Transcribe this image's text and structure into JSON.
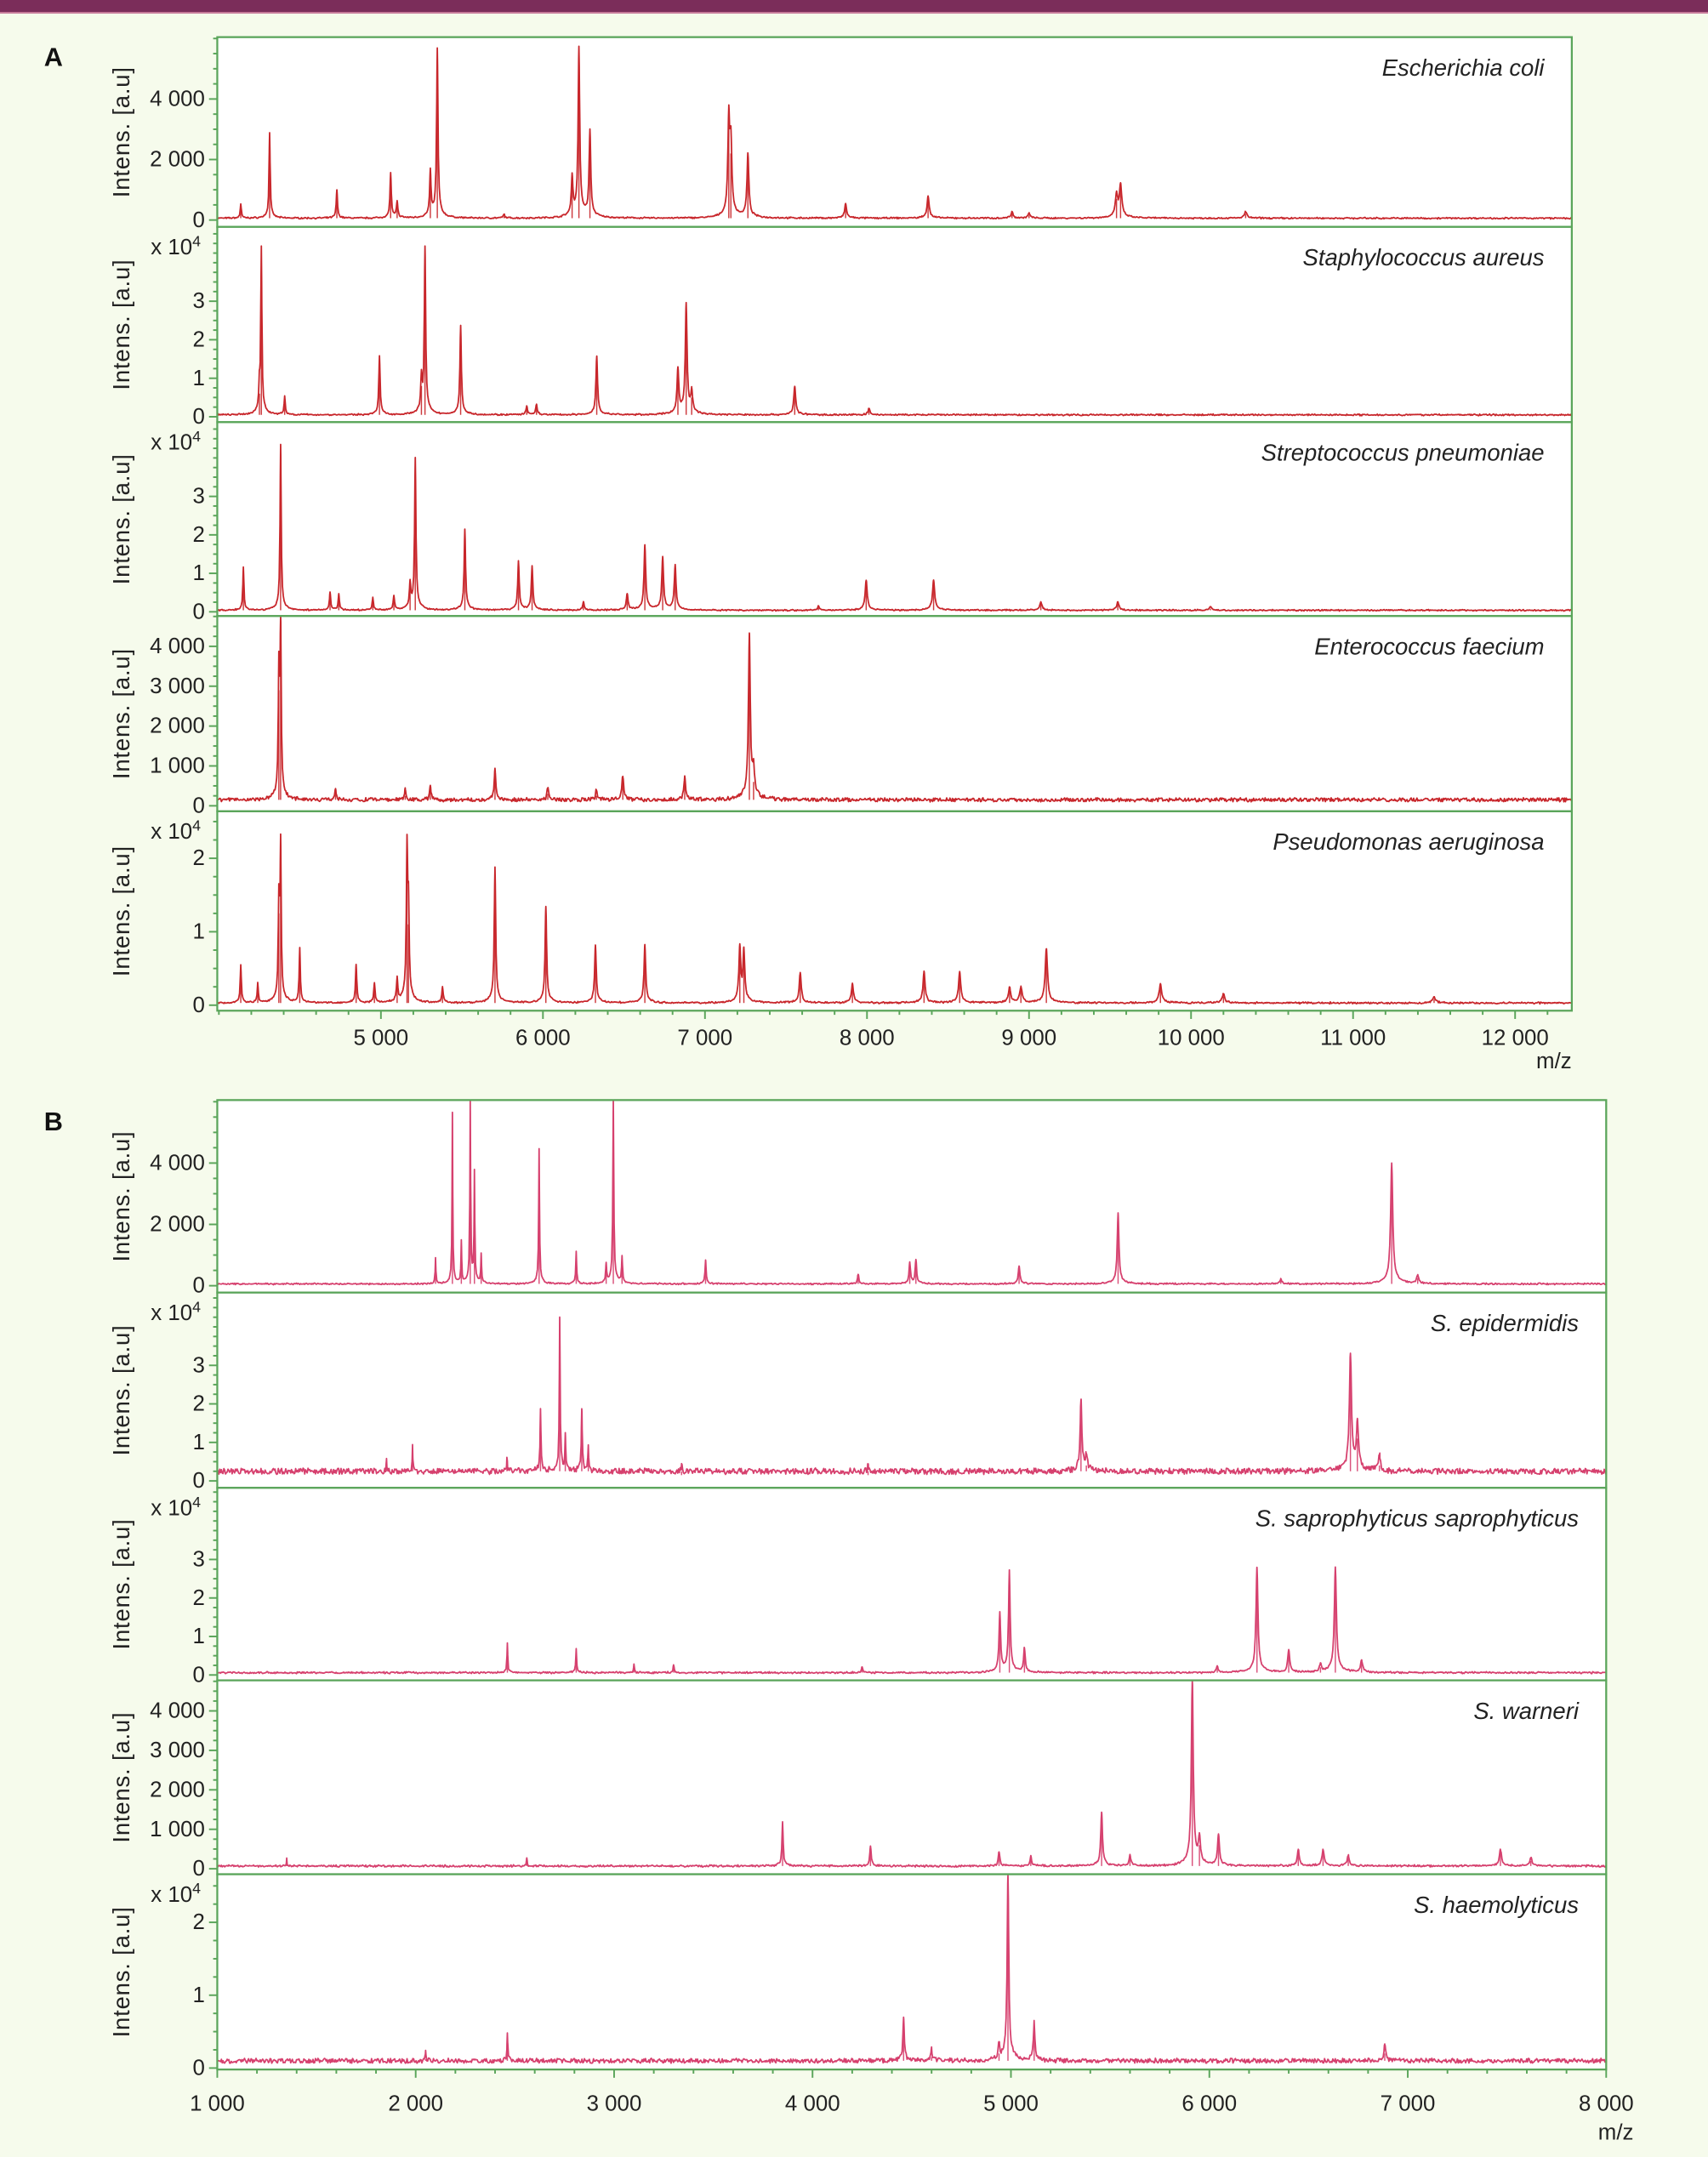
{
  "colors": {
    "background": "#f6fbec",
    "top_bar": "#7b2d5a",
    "frame": "#5aa55a",
    "panel_a_trace": "#c8262b",
    "panel_b_trace": "#d6406e"
  },
  "chart_data": [
    {
      "panel": "A",
      "type": "line",
      "xlabel": "m/z",
      "xlim": [
        3990,
        12350
      ],
      "xticks": [
        5000,
        6000,
        7000,
        8000,
        9000,
        10000,
        11000,
        12000
      ],
      "xtick_labels": [
        "5 000",
        "6 000",
        "7 000",
        "8 000",
        "9 000",
        "10 000",
        "11 000",
        "12 000"
      ],
      "subplots": [
        {
          "label": "Escherichia coli",
          "ylabel": "Intens. [a.u]",
          "yscale": "",
          "ylim": [
            -227,
            6045
          ],
          "yticks": [
            0,
            2000,
            4000
          ],
          "ytick_labels": [
            "0",
            "2 000",
            "4 000"
          ],
          "baseline": 60,
          "peaks": [
            [
              4135,
              450
            ],
            [
              4313,
              2700
            ],
            [
              4728,
              900
            ],
            [
              5060,
              1400
            ],
            [
              5100,
              500
            ],
            [
              5305,
              1400
            ],
            [
              5348,
              5300
            ],
            [
              5760,
              120
            ],
            [
              6180,
              1200
            ],
            [
              6222,
              5300
            ],
            [
              6290,
              2700
            ],
            [
              7147,
              3000
            ],
            [
              7160,
              2200
            ],
            [
              7265,
              2000
            ],
            [
              7868,
              450
            ],
            [
              8377,
              700
            ],
            [
              8895,
              200
            ],
            [
              9000,
              150
            ],
            [
              9565,
              1000
            ],
            [
              9540,
              700
            ],
            [
              10337,
              200
            ]
          ]
        },
        {
          "label": "Staphylococcus aureus",
          "ylabel": "Intens. [a.u]",
          "yscale": "x 10^4",
          "yscale_base": "x 10",
          "yscale_exp": "4",
          "ylim": [
            -0.14,
            4.93
          ],
          "yticks": [
            0,
            1,
            2,
            3
          ],
          "ytick_labels": [
            "0",
            "1",
            "2",
            "3"
          ],
          "baseline": 0.05,
          "peaks": [
            [
              4262,
              4.1
            ],
            [
              4250,
              0.6
            ],
            [
              4406,
              0.45
            ],
            [
              4991,
              1.45
            ],
            [
              5272,
              4.1
            ],
            [
              5250,
              0.8
            ],
            [
              5492,
              2.2
            ],
            [
              5900,
              0.2
            ],
            [
              5960,
              0.25
            ],
            [
              6332,
              1.45
            ],
            [
              6833,
              1.1
            ],
            [
              6884,
              2.7
            ],
            [
              6918,
              0.5
            ],
            [
              7554,
              0.7
            ],
            [
              8012,
              0.15
            ]
          ]
        },
        {
          "label": "Streptococcus pneumoniae",
          "ylabel": "Intens. [a.u]",
          "yscale": "x 10^4",
          "yscale_base": "x 10",
          "yscale_exp": "4",
          "ylim": [
            -0.11,
            4.93
          ],
          "yticks": [
            0,
            1,
            2,
            3
          ],
          "ytick_labels": [
            "0",
            "1",
            "2",
            "3"
          ],
          "baseline": 0.04,
          "peaks": [
            [
              4151,
              1.07
            ],
            [
              4381,
              4.1
            ],
            [
              4686,
              0.45
            ],
            [
              4740,
              0.4
            ],
            [
              4950,
              0.3
            ],
            [
              5080,
              0.35
            ],
            [
              5212,
              3.75
            ],
            [
              5180,
              0.6
            ],
            [
              5518,
              2.0
            ],
            [
              5849,
              1.2
            ],
            [
              5933,
              1.07
            ],
            [
              6250,
              0.2
            ],
            [
              6520,
              0.4
            ],
            [
              6629,
              1.6
            ],
            [
              6739,
              1.3
            ],
            [
              6816,
              1.1
            ],
            [
              7700,
              0.1
            ],
            [
              7995,
              0.75
            ],
            [
              8411,
              0.75
            ],
            [
              9073,
              0.2
            ],
            [
              9548,
              0.2
            ],
            [
              10120,
              0.08
            ]
          ]
        },
        {
          "label": "Enterococcus faecium",
          "ylabel": "Intens. [a.u]",
          "yscale": "",
          "ylim": [
            -138,
            4760
          ],
          "yticks": [
            0,
            1000,
            2000,
            3000,
            4000
          ],
          "ytick_labels": [
            "0",
            "1 000",
            "2 000",
            "3 000",
            "4 000"
          ],
          "baseline": 150,
          "peaks": [
            [
              4381,
              4200
            ],
            [
              4370,
              2900
            ],
            [
              4720,
              300
            ],
            [
              5150,
              250
            ],
            [
              5305,
              350
            ],
            [
              5704,
              750
            ],
            [
              6030,
              300
            ],
            [
              6330,
              250
            ],
            [
              6493,
              600
            ],
            [
              6875,
              550
            ],
            [
              7274,
              3900
            ],
            [
              7300,
              600
            ]
          ]
        },
        {
          "label": "Pseudomonas aeruginosa",
          "ylabel": "Intens. [a.u]",
          "yscale": "x 10^4",
          "yscale_base": "x 10",
          "yscale_exp": "4",
          "ylim": [
            -0.075,
            2.64
          ],
          "yticks": [
            0,
            1,
            2
          ],
          "ytick_labels": [
            "0",
            "1",
            "2"
          ],
          "baseline": 0.03,
          "peaks": [
            [
              4135,
              0.5
            ],
            [
              4240,
              0.25
            ],
            [
              4381,
              2.0
            ],
            [
              4370,
              1.25
            ],
            [
              4499,
              0.7
            ],
            [
              4847,
              0.5
            ],
            [
              4960,
              0.25
            ],
            [
              5100,
              0.3
            ],
            [
              5161,
              1.9
            ],
            [
              5170,
              1.1
            ],
            [
              5380,
              0.2
            ],
            [
              5704,
              1.75
            ],
            [
              6018,
              1.25
            ],
            [
              6324,
              0.75
            ],
            [
              6629,
              0.75
            ],
            [
              7215,
              0.7
            ],
            [
              7240,
              0.65
            ],
            [
              7588,
              0.4
            ],
            [
              7910,
              0.25
            ],
            [
              8352,
              0.4
            ],
            [
              8572,
              0.4
            ],
            [
              8880,
              0.2
            ],
            [
              8950,
              0.2
            ],
            [
              9107,
              0.7
            ],
            [
              9811,
              0.25
            ],
            [
              10200,
              0.12
            ],
            [
              11500,
              0.08
            ]
          ]
        }
      ]
    },
    {
      "panel": "B",
      "type": "line",
      "xlabel": "m/z",
      "xlim": [
        1000,
        8000
      ],
      "xticks": [
        1000,
        2000,
        3000,
        4000,
        5000,
        6000,
        7000,
        8000
      ],
      "xtick_labels": [
        "1 000",
        "2 000",
        "3 000",
        "4 000",
        "5 000",
        "6 000",
        "7 000",
        "8 000"
      ],
      "subplots": [
        {
          "label": "",
          "ylabel": "Intens. [a.u]",
          "yscale": "",
          "ylim": [
            -224,
            6054
          ],
          "yticks": [
            0,
            2000,
            4000
          ],
          "ytick_labels": [
            "0",
            "2 000",
            "4 000"
          ],
          "baseline": 60,
          "peaks": [
            [
              2100,
              800
            ],
            [
              2185,
              5300
            ],
            [
              2230,
              1300
            ],
            [
              2275,
              5700
            ],
            [
              2296,
              3400
            ],
            [
              2330,
              900
            ],
            [
              2622,
              4200
            ],
            [
              2809,
              1000
            ],
            [
              2960,
              600
            ],
            [
              2996,
              5700
            ],
            [
              3040,
              800
            ],
            [
              3461,
              750
            ],
            [
              4230,
              300
            ],
            [
              4490,
              650
            ],
            [
              4521,
              750
            ],
            [
              5041,
              550
            ],
            [
              5540,
              2200
            ],
            [
              6360,
              150
            ],
            [
              6919,
              3750
            ],
            [
              7050,
              250
            ]
          ]
        },
        {
          "label": "S. epidermidis",
          "ylabel": "Intens. [a.u]",
          "yscale": "x 10^4",
          "yscale_base": "x 10",
          "yscale_exp": "4",
          "ylim": [
            -0.18,
            4.89
          ],
          "yticks": [
            0,
            1,
            2,
            3
          ],
          "ytick_labels": [
            "0",
            "1",
            "2",
            "3"
          ],
          "baseline": 0.25,
          "peaks": [
            [
              1853,
              0.35
            ],
            [
              1984,
              0.6
            ],
            [
              2460,
              0.3
            ],
            [
              2629,
              1.6
            ],
            [
              2726,
              3.8
            ],
            [
              2754,
              0.8
            ],
            [
              2837,
              1.6
            ],
            [
              2870,
              0.6
            ],
            [
              3340,
              0.15
            ],
            [
              4280,
              0.15
            ],
            [
              5353,
              1.8
            ],
            [
              5380,
              0.4
            ],
            [
              6711,
              2.9
            ],
            [
              6746,
              1.1
            ],
            [
              6857,
              0.4
            ]
          ]
        },
        {
          "label": "S. saprophyticus saprophyticus",
          "ylabel": "Intens. [a.u]",
          "yscale": "x 10^4",
          "yscale_base": "x 10",
          "yscale_exp": "4",
          "ylim": [
            -0.14,
            4.86
          ],
          "yticks": [
            0,
            1,
            2,
            3
          ],
          "ytick_labels": [
            "0",
            "1",
            "2",
            "3"
          ],
          "baseline": 0.06,
          "peaks": [
            [
              2462,
              0.75
            ],
            [
              2809,
              0.6
            ],
            [
              3100,
              0.2
            ],
            [
              3300,
              0.2
            ],
            [
              4250,
              0.15
            ],
            [
              4944,
              1.45
            ],
            [
              4992,
              2.5
            ],
            [
              5068,
              0.6
            ],
            [
              6040,
              0.15
            ],
            [
              6240,
              2.6
            ],
            [
              6400,
              0.55
            ],
            [
              6560,
              0.2
            ],
            [
              6635,
              2.6
            ],
            [
              6767,
              0.3
            ]
          ]
        },
        {
          "label": "S. warneri",
          "ylabel": "Intens. [a.u]",
          "yscale": "",
          "ylim": [
            -139,
            4774
          ],
          "yticks": [
            0,
            1000,
            2000,
            3000,
            4000
          ],
          "ytick_labels": [
            "0",
            "1 000",
            "2 000",
            "3 000",
            "4 000"
          ],
          "baseline": 70,
          "peaks": [
            [
              1350,
              200
            ],
            [
              2560,
              200
            ],
            [
              3849,
              1050
            ],
            [
              4292,
              500
            ],
            [
              4940,
              350
            ],
            [
              5100,
              250
            ],
            [
              5457,
              1300
            ],
            [
              5600,
              250
            ],
            [
              5914,
              4550
            ],
            [
              5950,
              600
            ],
            [
              6046,
              750
            ],
            [
              6448,
              400
            ],
            [
              6573,
              400
            ],
            [
              6700,
              250
            ],
            [
              7467,
              400
            ],
            [
              7620,
              200
            ]
          ]
        },
        {
          "label": "S. haemolyticus",
          "ylabel": "Intens. [a.u]",
          "yscale": "x 10^4",
          "yscale_base": "x 10",
          "yscale_exp": "4",
          "ylim": [
            -0.02,
            2.66
          ],
          "yticks": [
            0,
            1,
            2
          ],
          "ytick_labels": [
            "0",
            "1",
            "2"
          ],
          "baseline": 0.1,
          "peaks": [
            [
              2462,
              0.35
            ],
            [
              2050,
              0.12
            ],
            [
              4459,
              0.55
            ],
            [
              4600,
              0.15
            ],
            [
              4940,
              0.2
            ],
            [
              4985,
              2.5
            ],
            [
              5117,
              0.5
            ],
            [
              6884,
              0.2
            ]
          ]
        }
      ]
    }
  ]
}
